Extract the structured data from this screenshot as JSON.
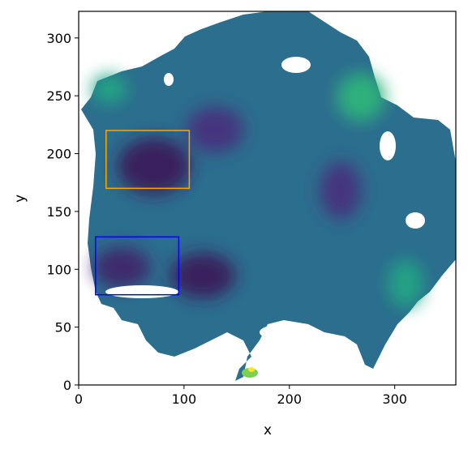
{
  "chart_data": {
    "type": "heatmap",
    "title": "",
    "xlabel": "x",
    "ylabel": "y",
    "xlim": [
      0,
      358
    ],
    "ylim": [
      0,
      323
    ],
    "xticks": [
      0,
      100,
      200,
      300
    ],
    "yticks": [
      0,
      50,
      100,
      150,
      200,
      250,
      300
    ],
    "colormap": "viridis",
    "grid": false,
    "legend": "none",
    "rectangles": [
      {
        "name": "orange box",
        "color": "#ffa500",
        "x0": 26,
        "x1": 105,
        "y0": 170,
        "y1": 220
      },
      {
        "name": "blue box",
        "color": "#0000ff",
        "x0": 16,
        "x1": 95,
        "y0": 78,
        "y1": 128
      }
    ]
  }
}
